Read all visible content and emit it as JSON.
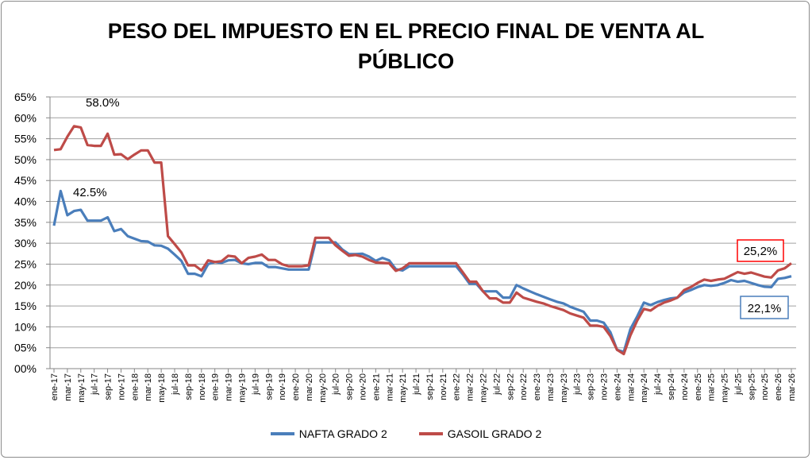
{
  "chart_data": {
    "type": "line",
    "title_line1": "PESO DEL IMPUESTO EN EL PRECIO FINAL DE VENTA AL",
    "title_line2": "PÚBLICO",
    "xlabel": "",
    "ylabel": "",
    "ylim": [
      0,
      65
    ],
    "y_ticks": [
      "00%",
      "05%",
      "10%",
      "15%",
      "20%",
      "25%",
      "30%",
      "35%",
      "40%",
      "45%",
      "50%",
      "55%",
      "60%",
      "65%"
    ],
    "x_tick_labels": [
      "ene-17",
      "mar-17",
      "may-17",
      "jul-17",
      "sep-17",
      "nov-17",
      "ene-18",
      "mar-18",
      "may-18",
      "jul-18",
      "sep-18",
      "nov-18",
      "ene-19",
      "mar-19",
      "may-19",
      "jul-19",
      "sep-19",
      "nov-19",
      "ene-20",
      "mar-20",
      "may-20",
      "jul-20",
      "sep-20",
      "nov-20",
      "ene-21",
      "mar-21",
      "may-21",
      "jul-21",
      "sep-21",
      "nov-21",
      "ene-22",
      "mar-22",
      "may-22",
      "jul-22",
      "sep-22",
      "nov-22",
      "ene-23",
      "mar-23",
      "may-23",
      "jul-23",
      "sep-23",
      "nov-23",
      "ene-24",
      "mar-24",
      "may-24",
      "jul-24",
      "sep-24",
      "nov-24",
      "ene-25",
      "mar-25",
      "may-25",
      "jul-25",
      "sep-25",
      "nov-25",
      "ene-26",
      "mar-26"
    ],
    "x_note": "monthly points from ene-17 to mar-26 (111 months)",
    "grid": true,
    "legend_position": "bottom",
    "series": [
      {
        "name": "NAFTA GRADO 2",
        "color": "#4a7ebb",
        "values": [
          34.2,
          42.5,
          36.7,
          37.7,
          38.0,
          35.4,
          35.4,
          35.4,
          36.2,
          32.9,
          33.4,
          31.7,
          31.1,
          30.5,
          30.4,
          29.5,
          29.4,
          28.7,
          27.3,
          25.8,
          22.7,
          22.7,
          22.1,
          25.0,
          25.5,
          25.3,
          25.9,
          26.0,
          25.2,
          25.0,
          25.3,
          25.3,
          24.3,
          24.3,
          24.0,
          23.7,
          23.7,
          23.7,
          23.7,
          30.2,
          30.2,
          30.2,
          30.2,
          28.5,
          27.4,
          27.4,
          27.5,
          26.8,
          25.8,
          26.5,
          25.9,
          23.8,
          23.5,
          24.5,
          24.5,
          24.5,
          24.5,
          24.5,
          24.5,
          24.5,
          24.5,
          22.5,
          20.3,
          20.3,
          18.5,
          18.5,
          18.5,
          17.0,
          17.0,
          20.0,
          19.2,
          18.5,
          17.8,
          17.2,
          16.6,
          16.0,
          15.6,
          14.8,
          14.2,
          13.6,
          11.5,
          11.5,
          11.0,
          8.7,
          4.5,
          4.0,
          9.5,
          12.5,
          15.8,
          15.2,
          15.9,
          16.4,
          16.8,
          17.0,
          18.2,
          18.8,
          19.5,
          20.0,
          19.8,
          20.0,
          20.5,
          21.2,
          20.8,
          21.0,
          20.5,
          20.0,
          19.6,
          19.5,
          21.5,
          21.7,
          22.1
        ]
      },
      {
        "name": "GASOIL GRADO 2",
        "color": "#be4b48",
        "values": [
          52.3,
          52.5,
          55.5,
          58.0,
          57.7,
          53.5,
          53.3,
          53.3,
          56.2,
          51.2,
          51.3,
          50.1,
          51.2,
          52.2,
          52.2,
          49.3,
          49.3,
          31.7,
          29.8,
          27.8,
          24.7,
          24.7,
          23.5,
          25.9,
          25.5,
          25.7,
          27.0,
          26.8,
          25.2,
          26.5,
          26.8,
          27.3,
          26.0,
          26.0,
          25.0,
          24.5,
          24.5,
          24.5,
          24.7,
          31.3,
          31.3,
          31.3,
          29.5,
          28.2,
          27.0,
          27.2,
          26.8,
          26.0,
          25.4,
          25.3,
          25.2,
          23.4,
          24.0,
          25.2,
          25.2,
          25.2,
          25.2,
          25.2,
          25.2,
          25.2,
          25.2,
          23.0,
          20.8,
          20.8,
          18.5,
          16.8,
          16.8,
          15.8,
          15.8,
          18.2,
          17.0,
          16.5,
          16.0,
          15.6,
          15.0,
          14.5,
          14.0,
          13.2,
          12.7,
          12.2,
          10.3,
          10.3,
          10.0,
          7.8,
          4.5,
          3.5,
          8.0,
          11.5,
          14.3,
          13.9,
          15.0,
          15.8,
          16.3,
          17.0,
          18.8,
          19.5,
          20.5,
          21.3,
          21.0,
          21.3,
          21.5,
          22.3,
          23.1,
          22.7,
          23.0,
          22.5,
          22.0,
          21.8,
          23.5,
          24.0,
          25.2
        ]
      }
    ],
    "annotations": {
      "gasoil_max": "58.0%",
      "nafta_max": "42.5%",
      "gasoil_last": "25,2%",
      "nafta_last": "22,1%"
    }
  }
}
